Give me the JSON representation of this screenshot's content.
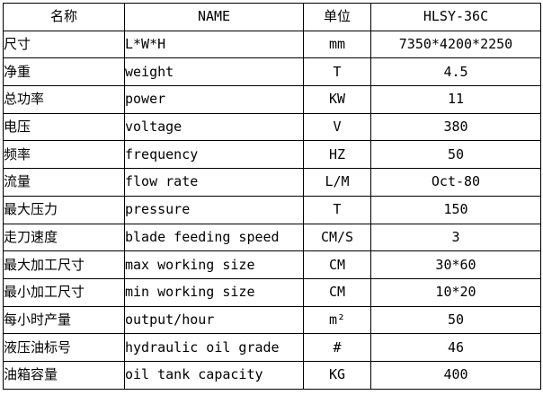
{
  "table": {
    "headers": [
      "名称",
      "NAME",
      "单位",
      "HLSY-36C"
    ],
    "rows": [
      {
        "cn": "尺寸",
        "en": "L*W*H",
        "unit": "mm",
        "value": "7350*4200*2250"
      },
      {
        "cn": "净重",
        "en": "weight",
        "unit": "T",
        "value": "4.5"
      },
      {
        "cn": "总功率",
        "en": "power",
        "unit": "KW",
        "value": "11"
      },
      {
        "cn": "电压",
        "en": "voltage",
        "unit": "V",
        "value": "380"
      },
      {
        "cn": "频率",
        "en": "frequency",
        "unit": "HZ",
        "value": "50"
      },
      {
        "cn": "流量",
        "en": "flow rate",
        "unit": "L/M",
        "value": "Oct-80"
      },
      {
        "cn": "最大压力",
        "en": "pressure",
        "unit": "T",
        "value": "150"
      },
      {
        "cn": "走刀速度",
        "en": "blade feeding speed",
        "unit": "CM/S",
        "value": "3"
      },
      {
        "cn": "最大加工尺寸",
        "en": "max working size",
        "unit": "CM",
        "value": "30*60"
      },
      {
        "cn": "最小加工尺寸",
        "en": "min working size",
        "unit": "CM",
        "value": "10*20"
      },
      {
        "cn": "每小时产量",
        "en": "output/hour",
        "unit": "m²",
        "value": "50"
      },
      {
        "cn": "液压油标号",
        "en": "hydraulic oil grade",
        "unit": "#",
        "value": "46"
      },
      {
        "cn": "油箱容量",
        "en": "oil tank capacity",
        "unit": "KG",
        "value": "400"
      }
    ]
  },
  "colors": {
    "border": "#000000",
    "text": "#000000",
    "background": "#ffffff"
  }
}
